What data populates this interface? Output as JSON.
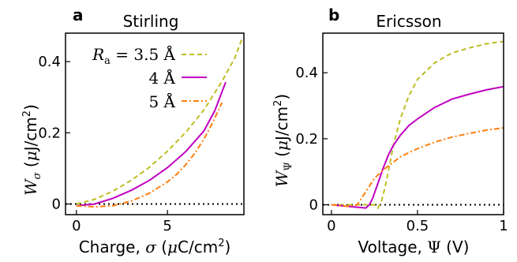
{
  "chart_data": [
    {
      "type": "line",
      "panel_label": "a",
      "title": "Stirling",
      "xlabel": "Charge, σ (μC/cm²)",
      "ylabel": "Wσ (μJ/cm²)",
      "xlim": [
        -0.6,
        9.2
      ],
      "ylim": [
        -0.03,
        0.48
      ],
      "xticks": [
        0,
        5
      ],
      "xtick_labels": [
        "0",
        "5"
      ],
      "yticks": [
        0,
        0.2,
        0.4
      ],
      "ytick_labels": [
        "0",
        "0.2",
        "0.4"
      ],
      "zero_line": "dotted",
      "legend": "upper left, text left of line samples",
      "series": [
        {
          "name": "Ra = 3.5 Å",
          "color": "#bcbd22",
          "dash": "dashed",
          "x": [
            0,
            1,
            2,
            3,
            4,
            5,
            6,
            7,
            8,
            8.7,
            9.1
          ],
          "y": [
            0,
            0.013,
            0.036,
            0.066,
            0.103,
            0.148,
            0.201,
            0.264,
            0.345,
            0.41,
            0.465
          ]
        },
        {
          "name": "4 Å",
          "color": "#c000c0",
          "dash": "solid",
          "x": [
            0,
            1,
            2,
            3,
            4,
            5,
            6,
            7,
            7.6,
            8.2
          ],
          "y": [
            -0.005,
            0.0,
            0.016,
            0.038,
            0.066,
            0.102,
            0.147,
            0.205,
            0.262,
            0.342
          ]
        },
        {
          "name": "5 Å",
          "color": "#ff7f0e",
          "dash": "dashdot",
          "x": [
            0,
            1,
            2,
            3,
            4,
            5,
            5.5,
            6,
            6.5,
            7,
            7.5,
            8
          ],
          "y": [
            -0.005,
            -0.008,
            -0.005,
            0.008,
            0.03,
            0.062,
            0.083,
            0.11,
            0.142,
            0.182,
            0.23,
            0.285
          ]
        }
      ]
    },
    {
      "type": "line",
      "panel_label": "b",
      "title": "Ericsson",
      "xlabel": "Voltage, Ψ (V)",
      "ylabel": "WΨ (μJ/cm²)",
      "xlim": [
        -0.05,
        1.0
      ],
      "ylim": [
        -0.03,
        0.52
      ],
      "xticks": [
        0,
        0.5,
        1
      ],
      "xtick_labels": [
        "0",
        "0.5",
        "1"
      ],
      "yticks": [
        0,
        0.2,
        0.4
      ],
      "ytick_labels": [
        "0",
        "0.2",
        "0.4"
      ],
      "zero_line": "dotted",
      "series": [
        {
          "name": "Ra = 3.5 Å",
          "color": "#bcbd22",
          "dash": "dashed",
          "x": [
            0,
            0.25,
            0.27,
            0.29,
            0.31,
            0.33,
            0.36,
            0.4,
            0.45,
            0.5,
            0.6,
            0.7,
            0.8,
            0.9,
            1.0
          ],
          "y": [
            0,
            0,
            -0.01,
            0.01,
            0.05,
            0.1,
            0.18,
            0.26,
            0.33,
            0.38,
            0.43,
            0.46,
            0.475,
            0.488,
            0.495
          ]
        },
        {
          "name": "4 Å",
          "color": "#c000c0",
          "dash": "solid",
          "x": [
            0,
            0.2,
            0.22,
            0.24,
            0.26,
            0.28,
            0.3,
            0.33,
            0.36,
            0.4,
            0.45,
            0.5,
            0.6,
            0.7,
            0.8,
            0.9,
            1.0
          ],
          "y": [
            0,
            -0.01,
            0.0,
            0.02,
            0.05,
            0.08,
            0.11,
            0.15,
            0.18,
            0.21,
            0.24,
            0.26,
            0.295,
            0.32,
            0.335,
            0.348,
            0.358
          ]
        },
        {
          "name": "5 Å",
          "color": "#ff7f0e",
          "dash": "dashdot",
          "x": [
            0,
            0.1,
            0.15,
            0.2,
            0.25,
            0.3,
            0.35,
            0.4,
            0.45,
            0.5,
            0.6,
            0.7,
            0.8,
            0.9,
            1.0
          ],
          "y": [
            0,
            -0.005,
            0.0,
            0.04,
            0.08,
            0.105,
            0.125,
            0.145,
            0.158,
            0.17,
            0.19,
            0.205,
            0.216,
            0.226,
            0.233
          ]
        }
      ]
    }
  ]
}
